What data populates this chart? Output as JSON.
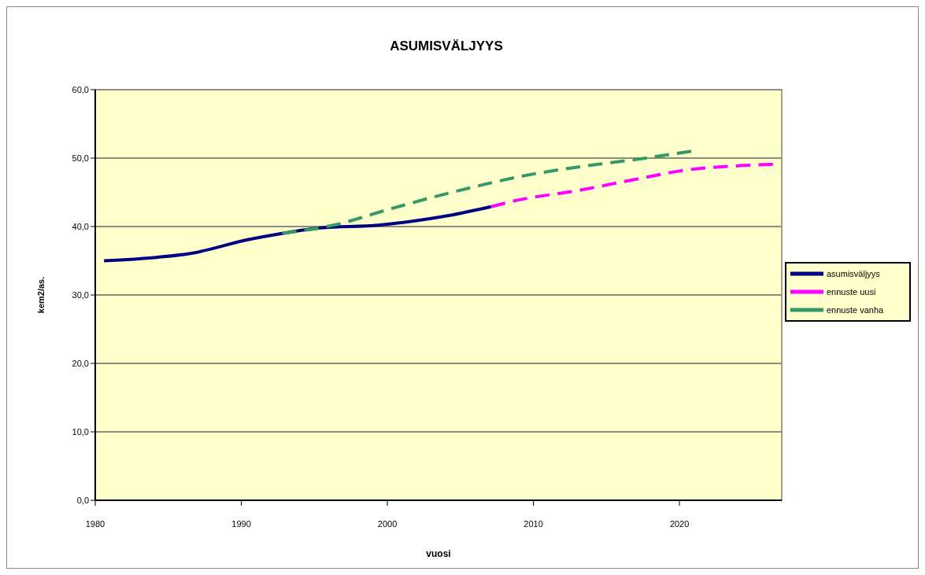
{
  "chart_data": {
    "type": "line",
    "title": "ASUMISVÄLJYYS",
    "xlabel": "vuosi",
    "ylabel": "kem2/as.",
    "xlim": [
      1980,
      2027
    ],
    "xticks": [
      1980,
      1990,
      2000,
      2010,
      2020
    ],
    "ylim": [
      0,
      60
    ],
    "yticks": [
      {
        "value": 0,
        "label": "0,0"
      },
      {
        "value": 10,
        "label": "10,0"
      },
      {
        "value": 20,
        "label": "20,0"
      },
      {
        "value": 30,
        "label": "30,0"
      },
      {
        "value": 40,
        "label": "40,0"
      },
      {
        "value": 50,
        "label": "50,0"
      },
      {
        "value": 60,
        "label": "60,0"
      }
    ],
    "grid": "y",
    "legend": "right",
    "series": [
      {
        "name": "asumisväljyys",
        "color": "#000080",
        "line_style": "solid",
        "x": [
          1980.6,
          1984.2,
          1986.6,
          1990.5,
          1992.8,
          1995.4,
          1999.4,
          2001.8,
          2004.2,
          2007.1
        ],
        "values": [
          35.0,
          35.5,
          36.1,
          38.1,
          39.0,
          39.8,
          40.2,
          40.8,
          41.6,
          42.9
        ]
      },
      {
        "name": "ennuste uusi",
        "color": "#ff00ff",
        "line_style": "dashed",
        "x": [
          2007.1,
          2008.6,
          2013.4,
          2017.0,
          2020.6,
          2024.2,
          2026.4
        ],
        "values": [
          42.9,
          43.7,
          45.4,
          46.9,
          48.3,
          48.9,
          49.1
        ]
      },
      {
        "name": "ennuste vanha",
        "color": "#339966",
        "line_style": "dashed",
        "x": [
          1992.8,
          1996.3,
          2000.4,
          2004.6,
          2009.8,
          2013.4,
          2017.0,
          2020.8
        ],
        "values": [
          39.0,
          40.2,
          42.7,
          45.1,
          47.6,
          48.8,
          49.8,
          51.0
        ]
      }
    ]
  }
}
